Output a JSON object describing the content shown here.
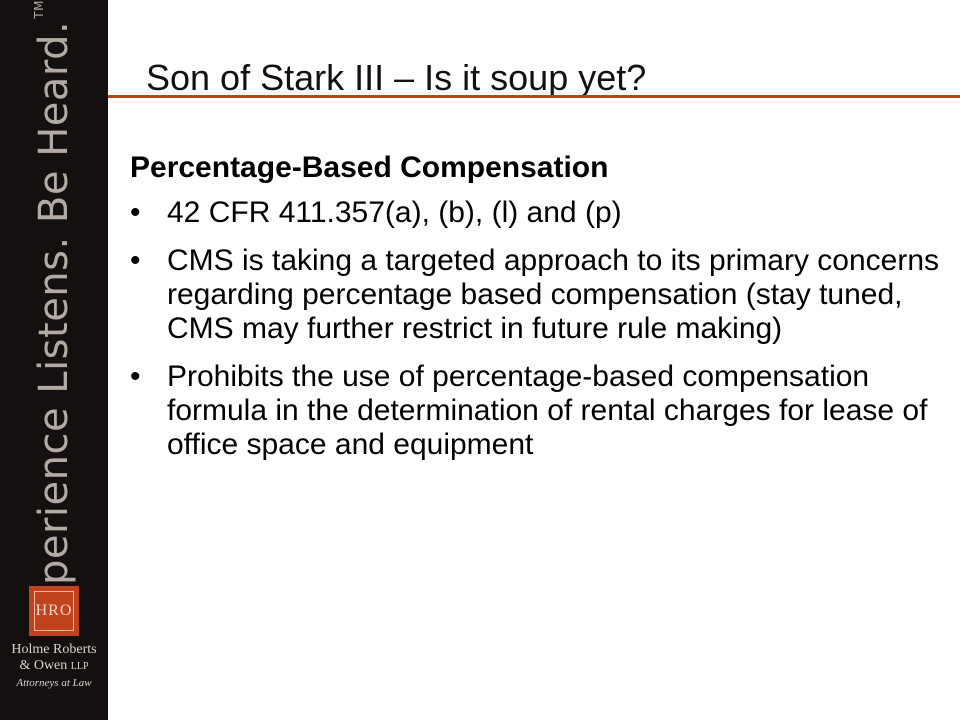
{
  "sidebar": {
    "tagline": "Experience Listens.  Be Heard.",
    "trademark": "TM",
    "logo_text": "HRO",
    "firm_name_line1": "Holme Roberts",
    "firm_name_line2": "& Owen",
    "firm_name_suffix": "LLP",
    "firm_subtitle": "Attorneys at Law"
  },
  "slide": {
    "title": "Son of Stark III – Is it soup yet?",
    "heading": "Percentage-Based Compensation",
    "bullet_symbol": "•",
    "bullets": [
      "42 CFR 411.357(a), (b), (l) and (p)",
      "CMS is taking a targeted approach to its primary concerns regarding percentage based compensation  (stay tuned, CMS may further restrict in future rule making)",
      "Prohibits the use of percentage-based compensation formula in the determination of rental charges for lease of office space and equipment"
    ]
  },
  "colors": {
    "sidebar_bg": "#141010",
    "accent": "#c0431d",
    "tagline": "#b3aaa3"
  }
}
